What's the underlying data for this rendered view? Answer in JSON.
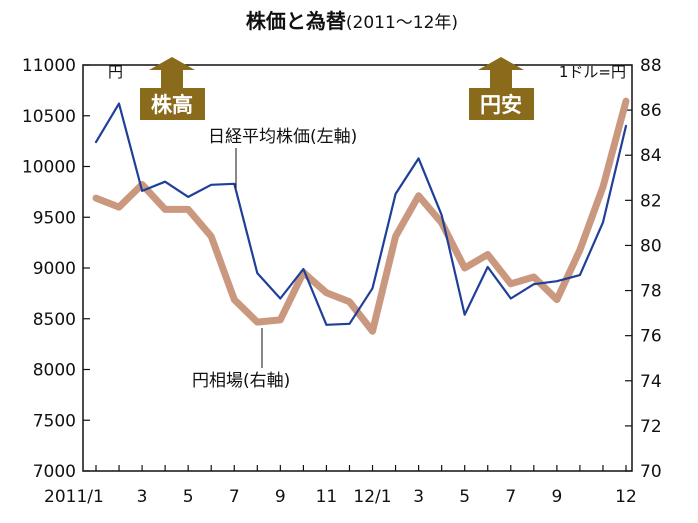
{
  "chart_data": {
    "type": "line",
    "title": "株価と為替",
    "subtitle": "(2011～12年)",
    "x": [
      "2011/1",
      "2",
      "3",
      "4",
      "5",
      "6",
      "7",
      "8",
      "9",
      "10",
      "11",
      "12",
      "12/1",
      "2",
      "3",
      "4",
      "5",
      "6",
      "7",
      "8",
      "9",
      "10",
      "11",
      "12"
    ],
    "xtick_labels": [
      "2011/1",
      "3",
      "5",
      "7",
      "9",
      "11",
      "12/1",
      "3",
      "5",
      "7",
      "9",
      "12"
    ],
    "left_axis": {
      "label": "円",
      "ylim": [
        7000,
        11000
      ],
      "ticks": [
        "7000",
        "7500",
        "8000",
        "8500",
        "9000",
        "9500",
        "10000",
        "10500",
        "11000"
      ]
    },
    "right_axis": {
      "label": "1ドル=円",
      "ylim": [
        70,
        88
      ],
      "ticks": [
        "70",
        "72",
        "74",
        "76",
        "78",
        "80",
        "82",
        "84",
        "86",
        "88"
      ]
    },
    "series": [
      {
        "name": "日経平均株価(左軸)",
        "axis": "left",
        "color": "#1f3f99",
        "values": [
          10240,
          10620,
          9760,
          9850,
          9700,
          9820,
          9830,
          8950,
          8700,
          8990,
          8440,
          8450,
          8800,
          9730,
          10080,
          9520,
          8540,
          9010,
          8700,
          8840,
          8870,
          8930,
          9450,
          10400
        ]
      },
      {
        "name": "円相場(右軸)",
        "axis": "right",
        "color": "#c9987e",
        "values": [
          82.1,
          81.7,
          82.7,
          81.6,
          81.6,
          80.4,
          77.6,
          76.6,
          76.7,
          78.8,
          77.9,
          77.5,
          76.2,
          80.4,
          82.2,
          81.0,
          79.0,
          79.6,
          78.3,
          78.6,
          77.6,
          79.8,
          82.6,
          86.4
        ]
      }
    ],
    "annotations": {
      "left_badge": "株高",
      "right_badge": "円安"
    },
    "colors": {
      "badge": "#8a6b1c",
      "axis": "#111111"
    }
  }
}
